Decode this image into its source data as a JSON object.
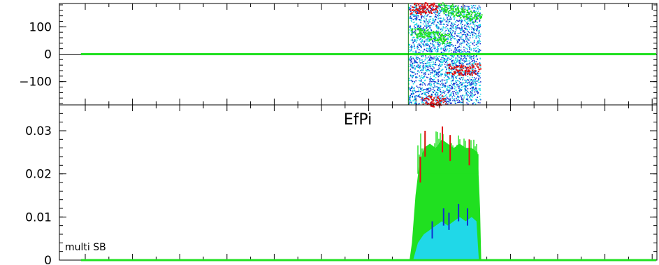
{
  "chart_data": [
    {
      "type": "scatter",
      "panel": "phase",
      "title": "",
      "xlabel": "",
      "ylabel": "",
      "ylim": [
        -185,
        185
      ],
      "xlim": [
        0,
        100
      ],
      "yticks": [
        {
          "value": 100,
          "label": "100"
        },
        {
          "value": 0,
          "label": "0"
        },
        {
          "value": -100,
          "label": "−100"
        }
      ],
      "colors": {
        "red": "#e01010",
        "green": "#20e020",
        "blue": "#1030d0",
        "cyan": "#20d8e8",
        "axis": "#000000"
      },
      "baseline": {
        "y": 0,
        "x_range": [
          3.6,
          100
        ]
      },
      "noise_region": {
        "x_range": [
          58.4,
          70.4
        ],
        "y_range": [
          -180,
          180
        ]
      },
      "series": [
        {
          "color": "green",
          "points": [
            [
              59.6,
              80
            ],
            [
              60.2,
              78
            ],
            [
              61.0,
              75
            ],
            [
              61.8,
              72
            ],
            [
              62.6,
              68
            ],
            [
              63.4,
              64
            ],
            [
              64.2,
              60
            ],
            [
              64.6,
              58
            ],
            [
              64.2,
              172
            ],
            [
              65.0,
              168
            ],
            [
              65.8,
              162
            ],
            [
              66.6,
              156
            ],
            [
              67.4,
              150
            ],
            [
              68.2,
              145
            ],
            [
              69.0,
              140
            ],
            [
              69.8,
              136
            ]
          ]
        },
        {
          "color": "red",
          "points": [
            [
              59.4,
              165
            ],
            [
              60.0,
              170
            ],
            [
              60.6,
              160
            ],
            [
              61.2,
              172
            ],
            [
              61.8,
              175
            ],
            [
              62.6,
              168
            ],
            [
              65.6,
              -52
            ],
            [
              66.4,
              -55
            ],
            [
              67.2,
              -58
            ],
            [
              68.0,
              -54
            ],
            [
              68.8,
              -56
            ],
            [
              69.6,
              -50
            ],
            [
              61.4,
              -170
            ],
            [
              62.2,
              -165
            ],
            [
              63.0,
              -172
            ],
            [
              63.8,
              -168
            ]
          ]
        }
      ]
    },
    {
      "type": "area",
      "panel": "amplitude",
      "title": "EfPi",
      "xlabel": "",
      "ylabel": "",
      "ylim": [
        0,
        0.036
      ],
      "xlim": [
        0,
        100
      ],
      "yticks": [
        {
          "value": 0.03,
          "label": "0.03"
        },
        {
          "value": 0.02,
          "label": "0.02"
        },
        {
          "value": 0.01,
          "label": "0.01"
        },
        {
          "value": 0,
          "label": "0"
        }
      ],
      "annotation": "multi SB",
      "series": [
        {
          "color": "green",
          "x_range": [
            58.6,
            70.6
          ],
          "level": 0.026,
          "peak": 0.031,
          "points": [
            [
              58.6,
              0.0
            ],
            [
              59.0,
              0.004
            ],
            [
              59.6,
              0.015
            ],
            [
              60.2,
              0.022
            ],
            [
              61.0,
              0.026
            ],
            [
              62.0,
              0.027
            ],
            [
              63.0,
              0.026
            ],
            [
              64.0,
              0.028
            ],
            [
              65.0,
              0.027
            ],
            [
              66.0,
              0.026
            ],
            [
              67.0,
              0.027
            ],
            [
              68.0,
              0.026
            ],
            [
              69.0,
              0.026
            ],
            [
              70.0,
              0.025
            ],
            [
              70.4,
              0.012
            ],
            [
              70.6,
              0.0
            ]
          ]
        },
        {
          "color": "red",
          "points": [
            [
              61.2,
              0.03
            ],
            [
              64.1,
              0.031
            ],
            [
              65.4,
              0.029
            ],
            [
              68.6,
              0.028
            ],
            [
              60.4,
              0.024
            ]
          ]
        },
        {
          "color": "cyan",
          "x_range": [
            59.2,
            70.2
          ],
          "level": 0.008,
          "points": [
            [
              59.2,
              0.0
            ],
            [
              60.0,
              0.004
            ],
            [
              61.0,
              0.006
            ],
            [
              62.0,
              0.007
            ],
            [
              63.0,
              0.008
            ],
            [
              64.0,
              0.009
            ],
            [
              65.0,
              0.008
            ],
            [
              66.0,
              0.009
            ],
            [
              67.0,
              0.01
            ],
            [
              68.0,
              0.009
            ],
            [
              69.0,
              0.01
            ],
            [
              69.8,
              0.009
            ],
            [
              70.2,
              0.0
            ]
          ]
        },
        {
          "color": "blue",
          "points": [
            [
              64.3,
              0.012
            ],
            [
              65.2,
              0.011
            ],
            [
              66.8,
              0.013
            ],
            [
              68.3,
              0.012
            ],
            [
              62.4,
              0.009
            ]
          ]
        }
      ],
      "baseline": {
        "y": 0,
        "x_range": [
          3.6,
          100
        ]
      }
    }
  ]
}
